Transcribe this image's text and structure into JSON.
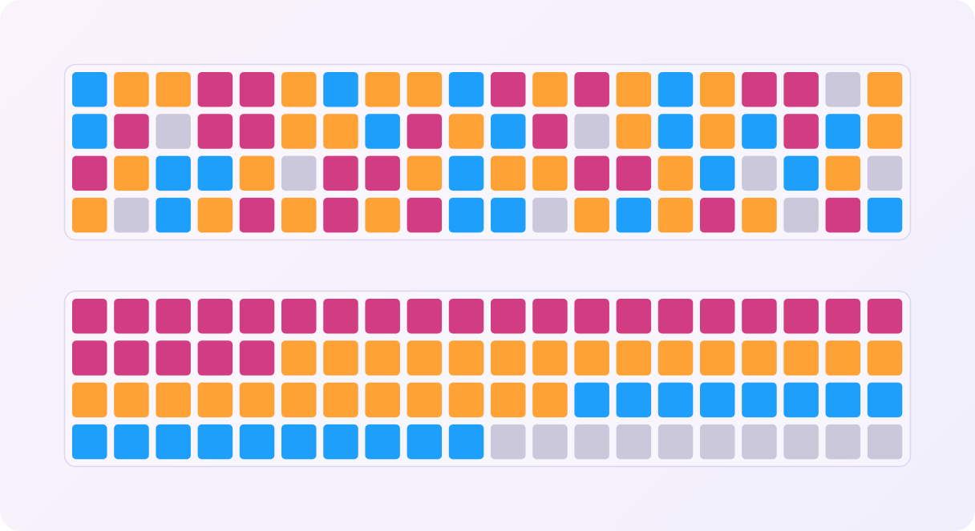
{
  "grids": [
    {
      "rows": [
        [
          "#1e9ffc",
          "#ffa236",
          "#ffa236",
          "#d13c82",
          "#d13c82",
          "#ffa236",
          "#1e9ffc",
          "#ffa236",
          "#ffa236",
          "#1e9ffc",
          "#d13c82",
          "#ffa236",
          "#d13c82",
          "#ffa236",
          "#1e9ffc",
          "#ffa236",
          "#d13c82",
          "#d13c82",
          "#cbc8dc",
          "#ffa236"
        ],
        [
          "#1e9ffc",
          "#d13c82",
          "#cbc8dc",
          "#d13c82",
          "#d13c82",
          "#ffa236",
          "#ffa236",
          "#1e9ffc",
          "#d13c82",
          "#ffa236",
          "#1e9ffc",
          "#d13c82",
          "#cbc8dc",
          "#ffa236",
          "#1e9ffc",
          "#ffa236",
          "#1e9ffc",
          "#d13c82",
          "#1e9ffc",
          "#ffa236"
        ],
        [
          "#d13c82",
          "#ffa236",
          "#1e9ffc",
          "#1e9ffc",
          "#ffa236",
          "#cbc8dc",
          "#d13c82",
          "#d13c82",
          "#ffa236",
          "#1e9ffc",
          "#ffa236",
          "#ffa236",
          "#d13c82",
          "#d13c82",
          "#ffa236",
          "#1e9ffc",
          "#cbc8dc",
          "#1e9ffc",
          "#ffa236",
          "#cbc8dc"
        ],
        [
          "#ffa236",
          "#cbc8dc",
          "#1e9ffc",
          "#ffa236",
          "#d13c82",
          "#ffa236",
          "#d13c82",
          "#ffa236",
          "#d13c82",
          "#1e9ffc",
          "#1e9ffc",
          "#cbc8dc",
          "#ffa236",
          "#1e9ffc",
          "#ffa236",
          "#d13c82",
          "#ffa236",
          "#cbc8dc",
          "#d13c82",
          "#1e9ffc"
        ]
      ]
    },
    {
      "rows": [
        [
          "#d13c82",
          "#d13c82",
          "#d13c82",
          "#d13c82",
          "#d13c82",
          "#d13c82",
          "#d13c82",
          "#d13c82",
          "#d13c82",
          "#d13c82",
          "#d13c82",
          "#d13c82",
          "#d13c82",
          "#d13c82",
          "#d13c82",
          "#d13c82",
          "#d13c82",
          "#d13c82",
          "#d13c82",
          "#d13c82"
        ],
        [
          "#d13c82",
          "#d13c82",
          "#d13c82",
          "#d13c82",
          "#d13c82",
          "#ffa236",
          "#ffa236",
          "#ffa236",
          "#ffa236",
          "#ffa236",
          "#ffa236",
          "#ffa236",
          "#ffa236",
          "#ffa236",
          "#ffa236",
          "#ffa236",
          "#ffa236",
          "#ffa236",
          "#ffa236",
          "#ffa236"
        ],
        [
          "#ffa236",
          "#ffa236",
          "#ffa236",
          "#ffa236",
          "#ffa236",
          "#ffa236",
          "#ffa236",
          "#ffa236",
          "#ffa236",
          "#ffa236",
          "#ffa236",
          "#ffa236",
          "#1e9ffc",
          "#1e9ffc",
          "#1e9ffc",
          "#1e9ffc",
          "#1e9ffc",
          "#1e9ffc",
          "#1e9ffc",
          "#1e9ffc"
        ],
        [
          "#1e9ffc",
          "#1e9ffc",
          "#1e9ffc",
          "#1e9ffc",
          "#1e9ffc",
          "#1e9ffc",
          "#1e9ffc",
          "#1e9ffc",
          "#1e9ffc",
          "#1e9ffc",
          "#cbc8dc",
          "#cbc8dc",
          "#cbc8dc",
          "#cbc8dc",
          "#cbc8dc",
          "#cbc8dc",
          "#cbc8dc",
          "#cbc8dc",
          "#cbc8dc",
          "#cbc8dc"
        ]
      ]
    }
  ]
}
